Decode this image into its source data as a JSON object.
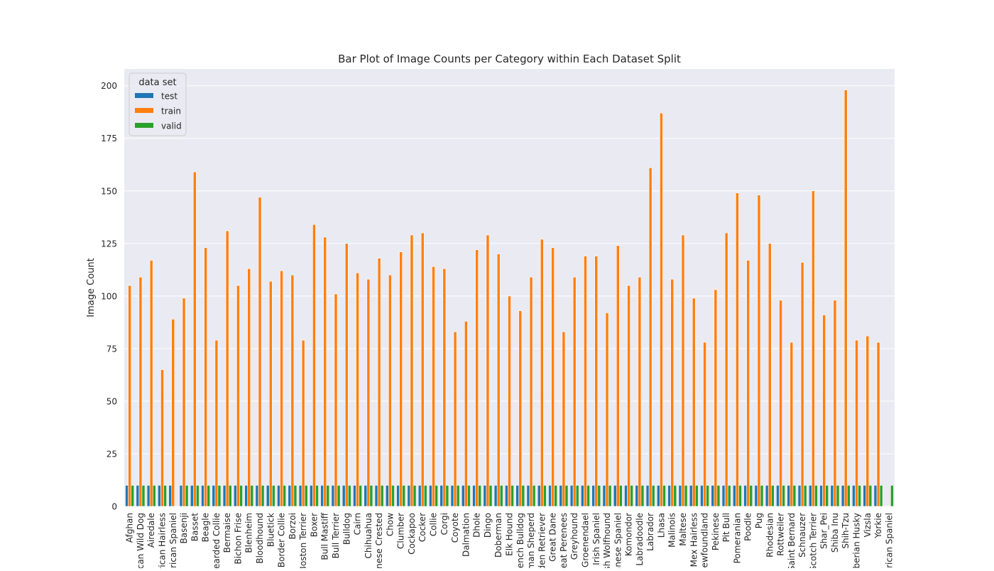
{
  "chart_data": {
    "type": "bar",
    "title": "Bar Plot of Image Counts per Category within Each Dataset Split",
    "xlabel": "",
    "ylabel": "Image Count",
    "ylim": [
      0,
      208
    ],
    "yticks": [
      0,
      25,
      50,
      75,
      100,
      125,
      150,
      175,
      200
    ],
    "grid": true,
    "legend": {
      "title": "data set",
      "placement": "top-left"
    },
    "categories": [
      "Afghan",
      "African Wild Dog",
      "Airedale",
      "American Hairless",
      "American Spaniel",
      "Basenji",
      "Basset",
      "Beagle",
      "Bearded Collie",
      "Bermaise",
      "Bichon Frise",
      "Blenheim",
      "Bloodhound",
      "Bluetick",
      "Border Collie",
      "Borzoi",
      "Boston Terrier",
      "Boxer",
      "Bull Mastiff",
      "Bull Terrier",
      "Bulldog",
      "Cairn",
      "Chihuahua",
      "Chinese Crested",
      "Chow",
      "Clumber",
      "Cockapoo",
      "Cocker",
      "Collie",
      "Corgi",
      "Coyote",
      "Dalmation",
      "Dhole",
      "Dingo",
      "Doberman",
      "Elk Hound",
      "French Bulldog",
      "German Sheperd",
      "Golden Retriever",
      "Great Dane",
      "Great Perenees",
      "Greyhound",
      "Groenendael",
      "Irish Spaniel",
      "Irish Wolfhound",
      "Japanese Spaniel",
      "Komondor",
      "Labradoodle",
      "Labrador",
      "Lhasa",
      "Malinois",
      "Maltese",
      "Mex Hairless",
      "Newfoundland",
      "Pekinese",
      "Pit Bull",
      "Pomeranian",
      "Poodle",
      "Pug",
      "Rhodesian",
      "Rottweiler",
      "Saint Bernard",
      "Schnauzer",
      "Scotch Terrier",
      "Shar_Pei",
      "Shiba Inu",
      "Shih-Tzu",
      "Siberian Husky",
      "Vizsla",
      "Yorkie",
      "American  Spaniel"
    ],
    "series": [
      {
        "name": "test",
        "color": "#1f77b4",
        "values": [
          10,
          10,
          10,
          10,
          10,
          10,
          10,
          10,
          10,
          10,
          10,
          10,
          10,
          10,
          10,
          10,
          10,
          10,
          10,
          10,
          10,
          10,
          10,
          10,
          10,
          10,
          10,
          10,
          10,
          10,
          10,
          10,
          10,
          10,
          10,
          10,
          10,
          10,
          10,
          10,
          10,
          10,
          10,
          10,
          10,
          10,
          10,
          10,
          10,
          10,
          10,
          10,
          10,
          10,
          10,
          10,
          10,
          10,
          10,
          10,
          10,
          10,
          10,
          10,
          10,
          10,
          10,
          10,
          10,
          10,
          0
        ]
      },
      {
        "name": "train",
        "color": "#ff7f0e",
        "values": [
          105,
          109,
          117,
          65,
          89,
          99,
          159,
          123,
          79,
          131,
          105,
          113,
          147,
          107,
          112,
          110,
          79,
          134,
          128,
          101,
          125,
          111,
          108,
          118,
          110,
          121,
          129,
          130,
          114,
          113,
          83,
          88,
          122,
          129,
          120,
          100,
          93,
          109,
          127,
          123,
          83,
          109,
          119,
          119,
          92,
          124,
          105,
          109,
          161,
          187,
          108,
          129,
          99,
          78,
          103,
          130,
          149,
          117,
          148,
          125,
          98,
          78,
          116,
          150,
          91,
          98,
          198,
          79,
          81,
          78,
          0
        ]
      },
      {
        "name": "valid",
        "color": "#2ca02c",
        "values": [
          10,
          10,
          10,
          10,
          0,
          10,
          10,
          10,
          10,
          10,
          10,
          10,
          10,
          10,
          10,
          10,
          10,
          10,
          10,
          10,
          10,
          10,
          10,
          10,
          10,
          10,
          10,
          10,
          10,
          10,
          10,
          10,
          10,
          10,
          10,
          10,
          10,
          10,
          10,
          10,
          10,
          10,
          10,
          10,
          10,
          10,
          10,
          10,
          10,
          10,
          10,
          10,
          10,
          10,
          10,
          10,
          10,
          10,
          10,
          10,
          10,
          10,
          10,
          10,
          10,
          10,
          10,
          10,
          10,
          10,
          10
        ]
      }
    ]
  }
}
